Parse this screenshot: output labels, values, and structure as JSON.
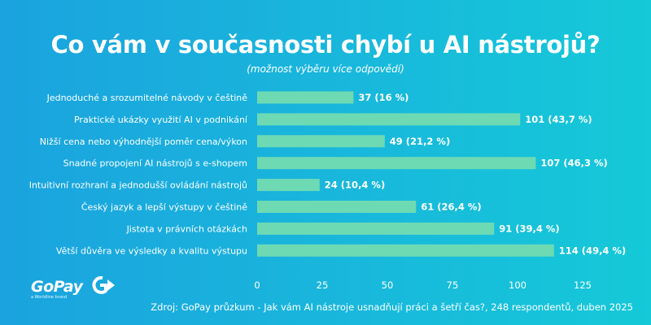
{
  "header": {
    "title": "Co vám v současnosti chybí u AI nástrojů?",
    "subtitle": "(možnost výběru více odpovědí)"
  },
  "logo": {
    "text": "GoPay",
    "tagline": "a Worldline brand"
  },
  "footer": {
    "source": "Zdroj: GoPay průzkum - Jak vám AI nástroje usnadňují práci a šetří čas?, 248 respondentů, duben 2025"
  },
  "colors": {
    "bar": "#6ddab4",
    "text": "#ffffff",
    "background_start": "#1aa3de",
    "background_end": "#15c9d8"
  },
  "chart_data": {
    "type": "bar",
    "orientation": "horizontal",
    "title": "Co vám v současnosti chybí u AI nástrojů?",
    "subtitle": "(možnost výběru více odpovědí)",
    "xlabel": "",
    "ylabel": "",
    "xlim": [
      0,
      125
    ],
    "ticks": [
      0,
      25,
      50,
      75,
      100,
      125
    ],
    "grid": false,
    "legend": "none",
    "categories": [
      "Jednoduché a srozumitelné návody v češtině",
      "Praktické ukázky využití AI v podnikání",
      "Nižší cena nebo výhodnější poměr cena/výkon",
      "Snadné propojení AI nástrojů s e-shopem",
      "Intuitivní rozhraní a jednodušší ovládání nástrojů",
      "Český jazyk a lepší výstupy v češtině",
      "Jistota v právních otázkách",
      "Větší důvěra ve výsledky a kvalitu výstupu"
    ],
    "values": [
      37,
      101,
      49,
      107,
      24,
      61,
      91,
      114
    ],
    "data_labels": [
      "37 (16 %)",
      "101 (43,7 %)",
      "49 (21,2 %)",
      "107 (46,3 %)",
      "24 (10,4 %)",
      "61 (26,4 %)",
      "91 (39,4 %)",
      "114 (49,4 %)"
    ]
  }
}
